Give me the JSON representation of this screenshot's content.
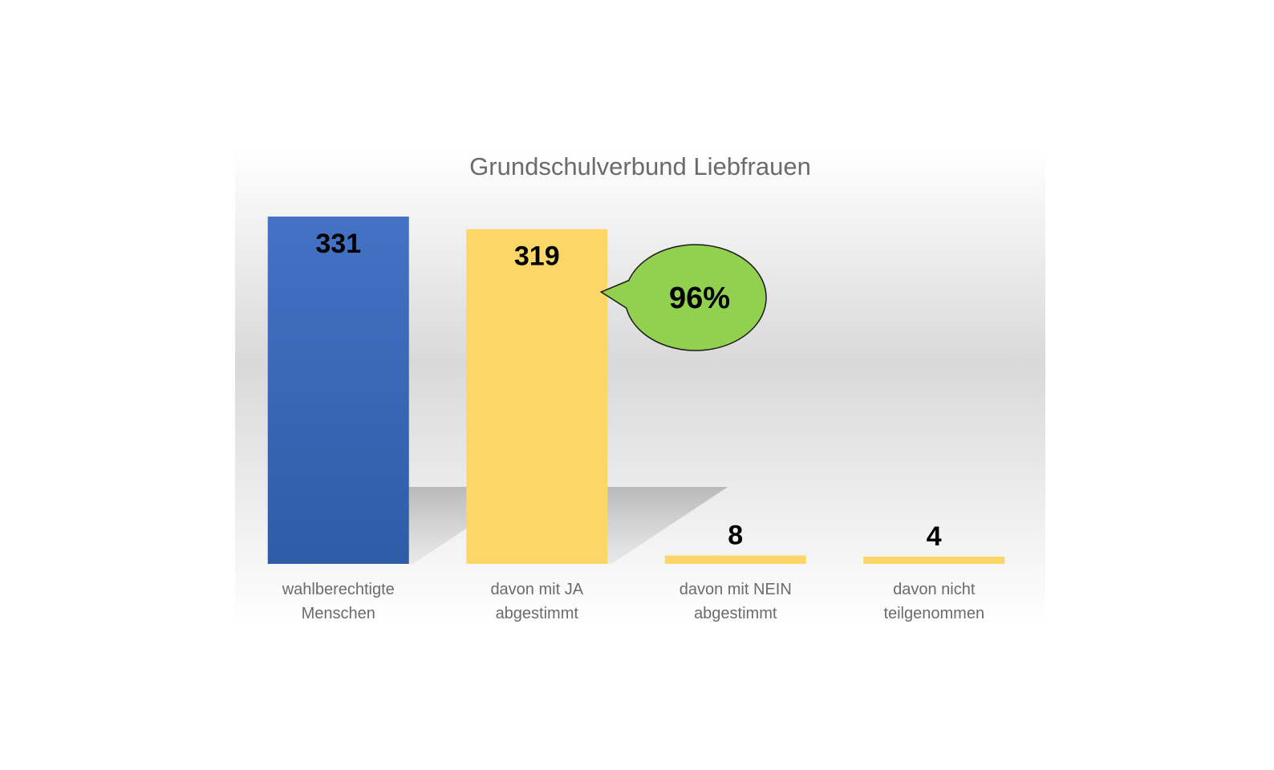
{
  "chart_data": {
    "type": "bar",
    "title": "Grundschulverbund Liebfrauen",
    "categories": [
      [
        "wahlberechtigte",
        "Menschen"
      ],
      [
        "davon mit JA",
        "abgestimmt"
      ],
      [
        "davon mit NEIN",
        "abgestimmt"
      ],
      [
        "davon nicht",
        "teilgenommen"
      ]
    ],
    "values": [
      331,
      319,
      8,
      4
    ],
    "bar_colors": [
      "#3a66b8",
      "#fcd768",
      "#fcd768",
      "#fcd768"
    ],
    "ylim": [
      0,
      331
    ],
    "grid": false,
    "legend": "none",
    "annotation": {
      "text": "96%",
      "target_category_index": 1,
      "color": "#92d050"
    }
  },
  "colors": {
    "title": "#6b6b6b",
    "labels": "#6b6b6b",
    "values": "#000000",
    "blue_top": "#4472c4",
    "blue_bottom": "#2f5ca7",
    "yellow": "#fcd768",
    "callout_fill": "#92d050",
    "callout_stroke": "#1a1a1a"
  }
}
